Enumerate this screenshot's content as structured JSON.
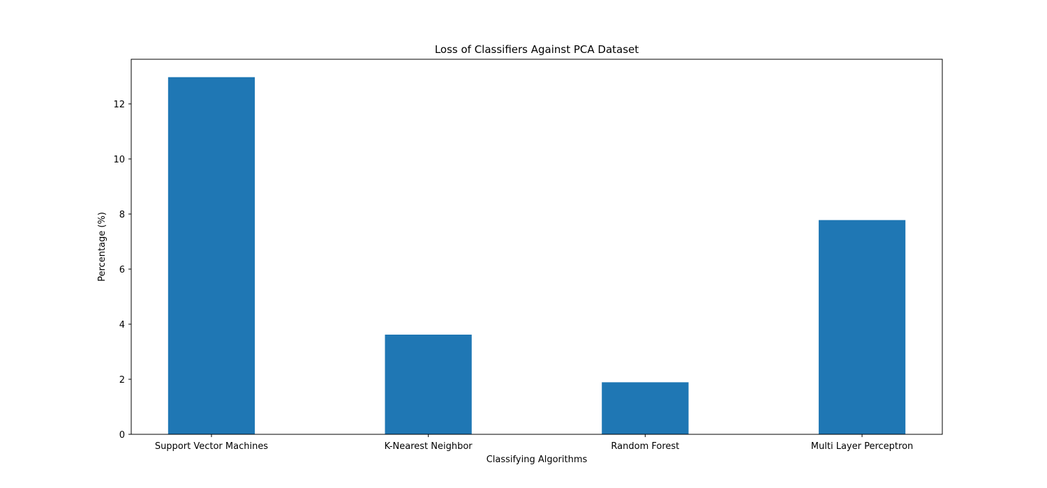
{
  "chart_data": {
    "type": "bar",
    "title": "Loss of Classifiers Against PCA Dataset",
    "xlabel": "Classifying Algorithms",
    "ylabel": "Percentage (%)",
    "categories": [
      "Support Vector Machines",
      "K-Nearest Neighbor",
      "Random Forest",
      "Multi Layer Perceptron"
    ],
    "values": [
      12.97,
      3.62,
      1.89,
      7.78
    ],
    "ylim": [
      0,
      13.62
    ],
    "yticks": [
      0,
      2,
      4,
      6,
      8,
      10,
      12
    ],
    "grid": false,
    "bar_color": "#1f77b4"
  }
}
